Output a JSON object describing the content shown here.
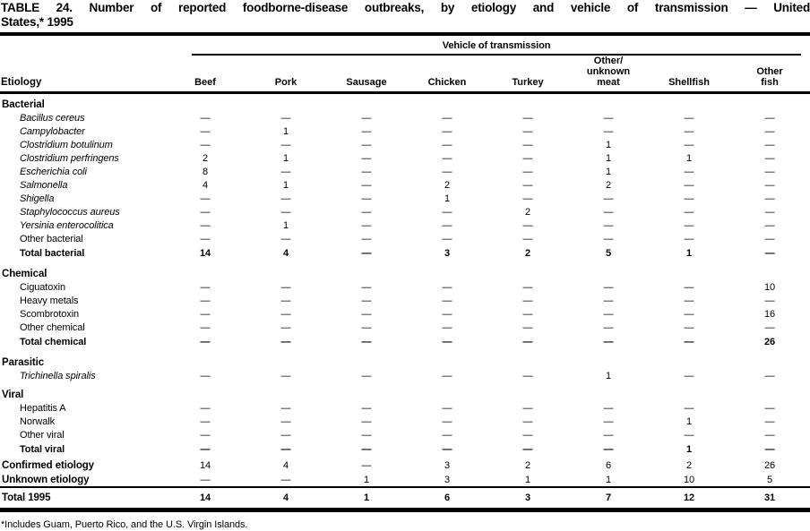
{
  "title": {
    "line1": "TABLE 24. Number of reported foodborne-disease outbreaks, by etiology and vehicle of transmission — United",
    "line2": "States,* 1995"
  },
  "table": {
    "spanner": "Vehicle of transmission",
    "etiology_header": "Etiology",
    "columns": [
      {
        "id": "beef",
        "lines": [
          "Beef"
        ]
      },
      {
        "id": "pork",
        "lines": [
          "Pork"
        ]
      },
      {
        "id": "sausage",
        "lines": [
          "Sausage"
        ]
      },
      {
        "id": "chicken",
        "lines": [
          "Chicken"
        ]
      },
      {
        "id": "turkey",
        "lines": [
          "Turkey"
        ]
      },
      {
        "id": "other-unknown-meat",
        "lines": [
          "Other/",
          "unknown",
          "meat"
        ]
      },
      {
        "id": "shellfish",
        "lines": [
          "Shellfish"
        ]
      },
      {
        "id": "other-fish",
        "lines": [
          "Other",
          "fish"
        ]
      }
    ],
    "rows": [
      {
        "label": "Bacterial",
        "type": "section first-section"
      },
      {
        "label": "Bacillus cereus",
        "type": "species",
        "values": [
          "—",
          "—",
          "—",
          "—",
          "—",
          "—",
          "—",
          "—"
        ]
      },
      {
        "label": "Campylobacter",
        "type": "species",
        "values": [
          "—",
          "1",
          "—",
          "—",
          "—",
          "—",
          "—",
          "—"
        ]
      },
      {
        "label": "Clostridium botulinum",
        "type": "species",
        "values": [
          "—",
          "—",
          "—",
          "—",
          "—",
          "1",
          "—",
          "—"
        ]
      },
      {
        "label": "Clostridium perfringens",
        "type": "species",
        "values": [
          "2",
          "1",
          "—",
          "—",
          "—",
          "1",
          "1",
          "—"
        ]
      },
      {
        "label": "Escherichia coli",
        "type": "species",
        "values": [
          "8",
          "—",
          "—",
          "—",
          "—",
          "1",
          "—",
          "—"
        ]
      },
      {
        "label": "Salmonella",
        "type": "species",
        "values": [
          "4",
          "1",
          "—",
          "2",
          "—",
          "2",
          "—",
          "—"
        ]
      },
      {
        "label": "Shigella",
        "type": "species",
        "values": [
          "—",
          "—",
          "—",
          "1",
          "—",
          "—",
          "—",
          "—"
        ]
      },
      {
        "label": "Staphylococcus aureus",
        "type": "species",
        "values": [
          "—",
          "—",
          "—",
          "—",
          "2",
          "—",
          "—",
          "—"
        ]
      },
      {
        "label": "Yersinia enterocolitica",
        "type": "species",
        "values": [
          "—",
          "1",
          "—",
          "—",
          "—",
          "—",
          "—",
          "—"
        ]
      },
      {
        "label": "Other bacterial",
        "type": "item",
        "values": [
          "—",
          "—",
          "—",
          "—",
          "—",
          "—",
          "—",
          "—"
        ]
      },
      {
        "label": "Total bacterial",
        "type": "total",
        "values": [
          "14",
          "4",
          "—",
          "3",
          "2",
          "5",
          "1",
          "—"
        ]
      },
      {
        "label": "Chemical",
        "type": "section"
      },
      {
        "label": "Ciguatoxin",
        "type": "item",
        "values": [
          "—",
          "—",
          "—",
          "—",
          "—",
          "—",
          "—",
          "10"
        ]
      },
      {
        "label": "Heavy metals",
        "type": "item",
        "values": [
          "—",
          "—",
          "—",
          "—",
          "—",
          "—",
          "—",
          "—"
        ]
      },
      {
        "label": "Scombrotoxin",
        "type": "item",
        "values": [
          "—",
          "—",
          "—",
          "—",
          "—",
          "—",
          "—",
          "16"
        ]
      },
      {
        "label": "Other chemical",
        "type": "item",
        "values": [
          "—",
          "—",
          "—",
          "—",
          "—",
          "—",
          "—",
          "—"
        ]
      },
      {
        "label": "Total chemical",
        "type": "total",
        "values": [
          "—",
          "—",
          "—",
          "—",
          "—",
          "—",
          "—",
          "26"
        ]
      },
      {
        "label": "Parasitic",
        "type": "section"
      },
      {
        "label": "Trichinella spiralis",
        "type": "species",
        "values": [
          "—",
          "—",
          "—",
          "—",
          "—",
          "1",
          "—",
          "—"
        ]
      },
      {
        "label": "Viral",
        "type": "section"
      },
      {
        "label": "Hepatitis A",
        "type": "item",
        "values": [
          "—",
          "—",
          "—",
          "—",
          "—",
          "—",
          "—",
          "—"
        ]
      },
      {
        "label": "Norwalk",
        "type": "item",
        "values": [
          "—",
          "—",
          "—",
          "—",
          "—",
          "—",
          "1",
          "—"
        ]
      },
      {
        "label": "Other viral",
        "type": "item",
        "values": [
          "—",
          "—",
          "—",
          "—",
          "—",
          "—",
          "—",
          "—"
        ]
      },
      {
        "label": "Total viral",
        "type": "total",
        "values": [
          "—",
          "—",
          "—",
          "—",
          "—",
          "—",
          "1",
          "—"
        ]
      },
      {
        "label": "Confirmed etiology",
        "type": "summary",
        "values": [
          "14",
          "4",
          "—",
          "3",
          "2",
          "6",
          "2",
          "26"
        ]
      },
      {
        "label": "Unknown etiology",
        "type": "summary",
        "values": [
          "—",
          "—",
          "1",
          "3",
          "1",
          "1",
          "10",
          "5"
        ]
      },
      {
        "label": "Total 1995",
        "type": "grandtotal",
        "values": [
          "14",
          "4",
          "1",
          "6",
          "3",
          "7",
          "12",
          "31"
        ]
      }
    ]
  },
  "footnote": "*Includes Guam, Puerto Rico, and the U.S. Virgin Islands."
}
